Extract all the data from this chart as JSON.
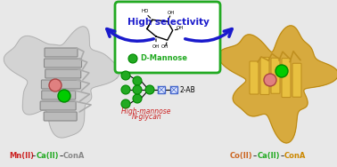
{
  "bg_color": "#f0f0f0",
  "left_protein_color": "#c8c8c8",
  "right_protein_color": "#d4a000",
  "mn_sphere_color": "#e08080",
  "ca_sphere_color": "#00cc00",
  "co_sphere_color": "#e08080",
  "mannose_green": "#22aa22",
  "glycan_green": "#22aa22",
  "glycan_blue": "#4466cc",
  "arrow_color": "#1a1acc",
  "d_mannose_box_color": "#22aa22",
  "left_label": [
    "Mn(II)",
    "–",
    "Ca(II)",
    "–",
    "ConA"
  ],
  "left_label_colors": [
    "#cc2222",
    "#000000",
    "#22aa22",
    "#000000",
    "#888888"
  ],
  "right_label": [
    "Co(II)",
    "–",
    "Ca(II)",
    "–",
    "ConA"
  ],
  "right_label_colors": [
    "#cc6622",
    "#000000",
    "#22aa22",
    "#000000",
    "#cc8800"
  ],
  "center_label": "High selectivity",
  "center_label_color": "#1a1acc",
  "glycan_label": "High-mannose N-glycan",
  "glycan_label_color": "#cc2222",
  "mannose_label": "D-Mannose",
  "mannose_label_color": "#22aa22",
  "twoAB_label": "2-AB",
  "figsize": [
    3.78,
    1.88
  ],
  "dpi": 100
}
